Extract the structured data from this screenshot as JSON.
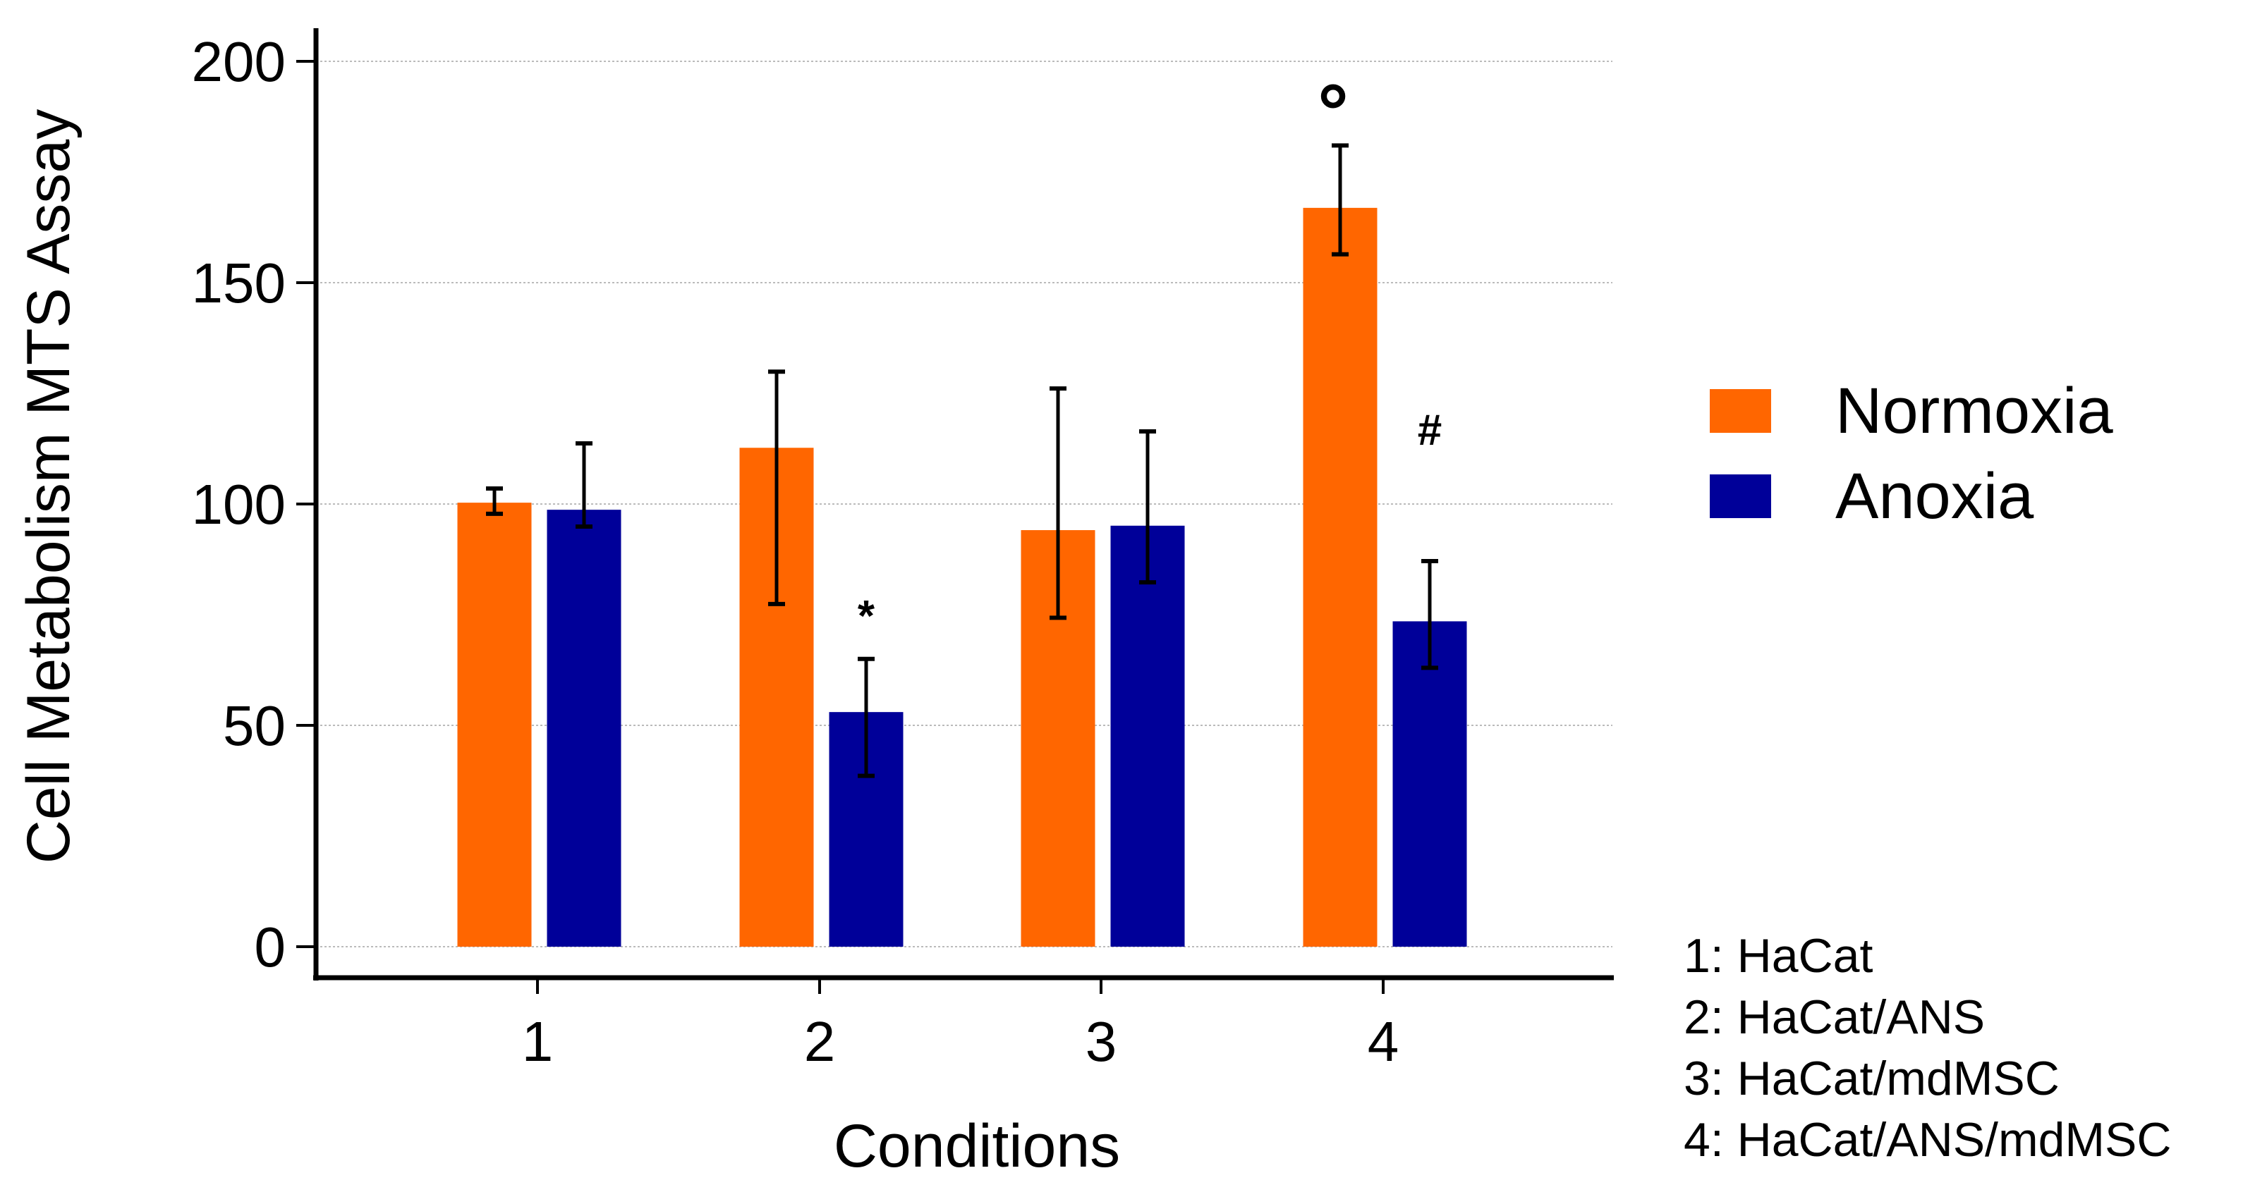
{
  "chart_data": {
    "type": "bar",
    "title": "",
    "xlabel": "Conditions",
    "ylabel": "Cell Metabolism MTS Assay",
    "ylim": [
      0,
      200
    ],
    "yticks": [
      "0",
      "50",
      "100",
      "150",
      "200"
    ],
    "grid": true,
    "categories": [
      "1",
      "2",
      "3",
      "4"
    ],
    "series": [
      {
        "name": "Normoxia",
        "color": "#ff6600",
        "values": [
          100.3,
          112.7,
          94.1,
          166.9
        ],
        "err_high": [
          103.5,
          129.9,
          126.1,
          181.0
        ],
        "err_low": [
          97.8,
          77.4,
          74.3,
          156.4
        ]
      },
      {
        "name": "Anoxia",
        "color": "#000099",
        "values": [
          98.7,
          53.0,
          95.1,
          73.5
        ],
        "err_high": [
          113.7,
          65.0,
          116.4,
          87.1
        ],
        "err_low": [
          94.9,
          38.6,
          82.3,
          63.0
        ]
      }
    ],
    "annotations": [
      {
        "text": "*",
        "category": "2",
        "series": "Anoxia"
      },
      {
        "text": "°",
        "category": "4",
        "series": "Normoxia"
      },
      {
        "text": "#",
        "category": "4",
        "series": "Anoxia"
      }
    ],
    "legend_position": "right",
    "condition_key": [
      "1: HaCat",
      "2: HaCat/ANS",
      "3: HaCat/mdMSC",
      "4: HaCat/ANS/mdMSC"
    ]
  }
}
